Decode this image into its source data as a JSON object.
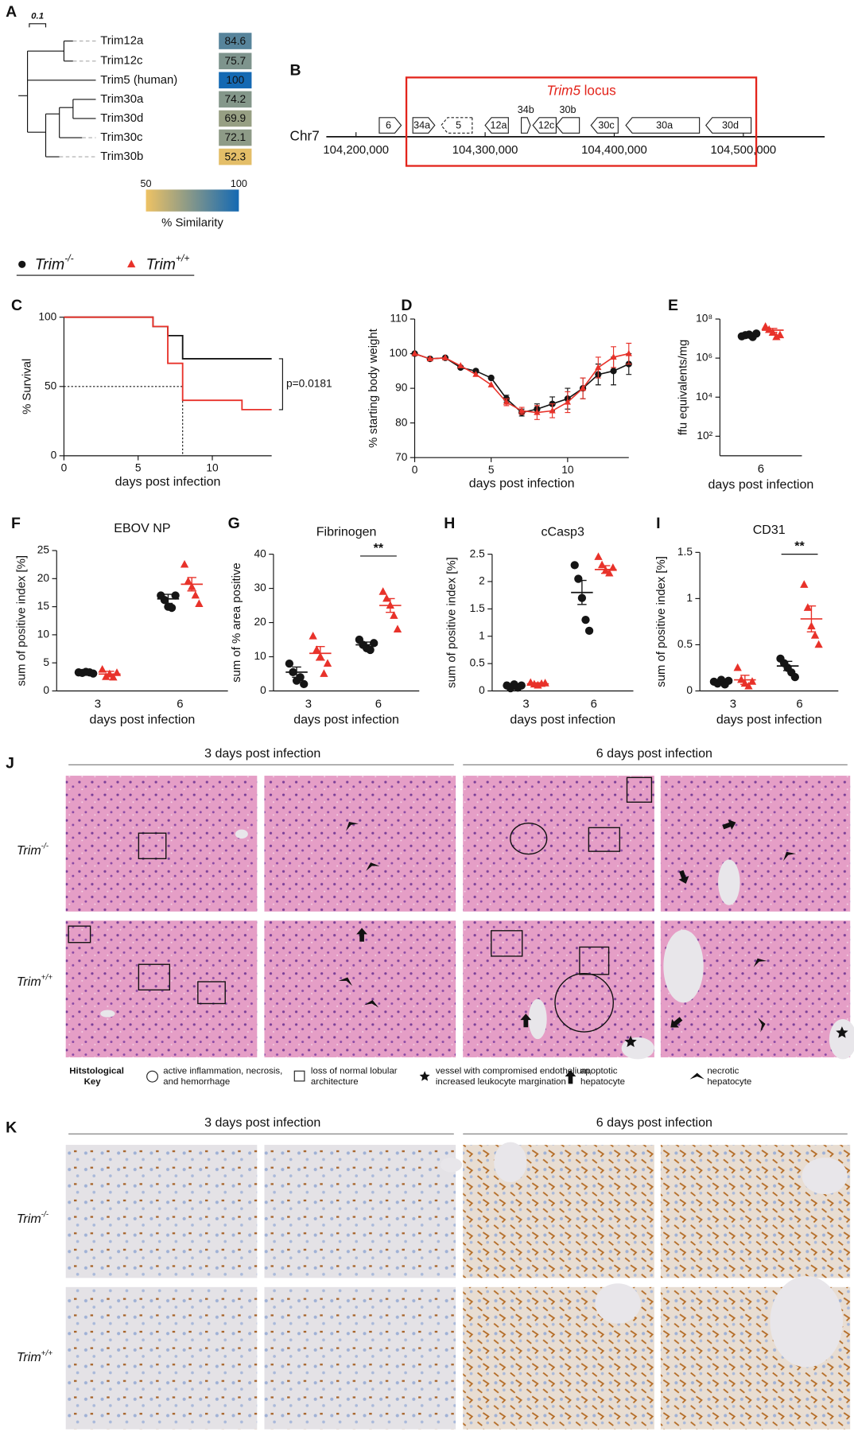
{
  "panel_labels": [
    "A",
    "B",
    "C",
    "D",
    "E",
    "F",
    "G",
    "H",
    "I",
    "J",
    "K"
  ],
  "genotypes": [
    {
      "base": "Trim",
      "sup": "-/-",
      "color": "#151515",
      "marker": "circle"
    },
    {
      "base": "Trim",
      "sup": "+/+",
      "color": "#e8322a",
      "marker": "triangle"
    }
  ],
  "tree": {
    "scale_label": "0.1",
    "leaves": [
      {
        "name": "Trim12a",
        "similarity": 84.6
      },
      {
        "name": "Trim12c",
        "similarity": 75.7
      },
      {
        "name": "Trim5 (human)",
        "similarity": 100
      },
      {
        "name": "Trim30a",
        "similarity": 74.2
      },
      {
        "name": "Trim30d",
        "similarity": 69.9
      },
      {
        "name": "Trim30c",
        "similarity": 72.1
      },
      {
        "name": "Trim30b",
        "similarity": 52.3
      }
    ],
    "colorbar": {
      "min": 50,
      "max": 100,
      "label": "% Similarity",
      "low_color": "#eec264",
      "high_color": "#1469b3"
    }
  },
  "locus": {
    "chromosome": "Chr7",
    "xlim": [
      104177000,
      104563000
    ],
    "xticks": [
      {
        "value": 104200000,
        "label": "104,200,000"
      },
      {
        "value": 104300000,
        "label": "104,300,000"
      },
      {
        "value": 104400000,
        "label": "104,400,000"
      },
      {
        "value": 104500000,
        "label": "104,500,000"
      }
    ],
    "region": {
      "italic": "Trim5",
      "text": "locus",
      "start": 104239000,
      "end": 104510000,
      "color": "#e3241b"
    },
    "genes": [
      {
        "name": "6",
        "start": 104218000,
        "end": 104235000,
        "direction": "right"
      },
      {
        "name": "34a",
        "start": 104244000,
        "end": 104261000,
        "direction": "right"
      },
      {
        "name": "5",
        "start": 104266000,
        "end": 104290000,
        "direction": "left",
        "dashed": true
      },
      {
        "name": "12a",
        "start": 104300000,
        "end": 104318000,
        "direction": "left"
      },
      {
        "name": "34b",
        "start": 104328000,
        "end": 104335000,
        "direction": "right",
        "label_above": true
      },
      {
        "name": "12c",
        "start": 104337000,
        "end": 104355000,
        "direction": "left"
      },
      {
        "name": "30b",
        "start": 104355000,
        "end": 104373000,
        "direction": "left",
        "label_above": true
      },
      {
        "name": "30c",
        "start": 104382000,
        "end": 104403000,
        "direction": "left"
      },
      {
        "name": "30a",
        "start": 104409000,
        "end": 104466000,
        "direction": "left"
      },
      {
        "name": "30d",
        "start": 104471000,
        "end": 104506000,
        "direction": "left"
      }
    ]
  },
  "chart_data": [
    {
      "type": "step",
      "ylabel": "% Survival",
      "xlabel": "days post infection",
      "xlim": [
        0,
        14
      ],
      "xticks": [
        0,
        5,
        10
      ],
      "ylim": [
        0,
        100
      ],
      "yticks": [
        0,
        50,
        100
      ],
      "series": [
        {
          "color": "#151515",
          "x": [
            0,
            6,
            7,
            8,
            14
          ],
          "values": [
            100,
            93.3,
            86.7,
            70,
            70
          ]
        },
        {
          "color": "#e8322a",
          "x": [
            0,
            6,
            7,
            8,
            12,
            14
          ],
          "values": [
            100,
            93.3,
            66.7,
            40,
            33.3,
            33.3
          ]
        }
      ],
      "median_line": {
        "x": 8,
        "y": 50
      },
      "annotation": "p=0.0181"
    },
    {
      "type": "line",
      "ylabel": "% starting  body weight",
      "xlabel": "days post infection",
      "xlim": [
        0,
        14
      ],
      "xticks": [
        0,
        5,
        10
      ],
      "ylim": [
        70,
        110
      ],
      "yticks": [
        70,
        80,
        90,
        100,
        110
      ],
      "x": [
        0,
        1,
        2,
        3,
        4,
        5,
        6,
        7,
        8,
        9,
        10,
        11,
        12,
        13,
        14
      ],
      "series": [
        {
          "color": "#151515",
          "marker": "circle",
          "values": [
            100,
            98.5,
            98.8,
            96,
            95,
            93,
            87,
            83,
            84,
            85.5,
            87,
            90,
            94,
            95,
            97
          ],
          "errors": [
            0,
            0,
            0,
            0,
            0,
            0,
            1,
            1,
            1.5,
            2,
            3,
            3,
            3,
            4,
            3
          ]
        },
        {
          "color": "#e8322a",
          "marker": "triangle",
          "values": [
            100,
            98.5,
            98.8,
            96.5,
            94,
            91,
            86,
            83.5,
            83,
            83.5,
            86,
            90,
            96,
            99,
            100
          ],
          "errors": [
            0,
            0,
            0,
            0,
            0,
            0,
            1,
            1,
            2,
            2,
            3,
            3,
            3,
            3,
            3
          ]
        }
      ]
    },
    {
      "type": "dot",
      "ylabel": "ffu equivalents/mg",
      "xlabel": "days post infection",
      "categories": [
        "6"
      ],
      "log_y": true,
      "ylim": [
        10,
        100000000
      ],
      "yticks": [
        {
          "value": 100,
          "label": "10²"
        },
        {
          "value": 10000,
          "label": "10⁴"
        },
        {
          "value": 1000000,
          "label": "10⁶"
        },
        {
          "value": 100000000,
          "label": "10⁸"
        }
      ],
      "series": [
        {
          "color": "#151515",
          "marker": "circle",
          "values": [
            [
              13000000,
              15000000,
              16000000,
              12000000,
              18000000
            ]
          ],
          "means": [
            15000000
          ],
          "errors": [
            1200000
          ]
        },
        {
          "color": "#e8322a",
          "marker": "triangle",
          "values": [
            [
              40000000,
              28000000,
              20000000,
              12000000,
              15000000
            ]
          ],
          "means": [
            27000000
          ],
          "errors": [
            6000000
          ]
        }
      ]
    },
    {
      "type": "dot",
      "title": "EBOV NP",
      "ylabel": "sum of positive index [%]",
      "xlabel": "days post infection",
      "categories": [
        "3",
        "6"
      ],
      "ylim": [
        0,
        25
      ],
      "yticks": [
        0,
        5,
        10,
        15,
        20,
        25
      ],
      "series": [
        {
          "color": "#151515",
          "marker": "circle",
          "values": [
            [
              3.3,
              3.2,
              3.4,
              3.3,
              3.1
            ],
            [
              17,
              16.2,
              15,
              14.8,
              17
            ]
          ],
          "means": [
            3.3,
            16.4
          ],
          "errors": [
            0.1,
            0.8
          ]
        },
        {
          "color": "#e8322a",
          "marker": "triangle",
          "values": [
            [
              3.8,
              2.5,
              3.0,
              2.4,
              3.2
            ],
            [
              22.5,
              19.5,
              18.5,
              17,
              15.5
            ]
          ],
          "means": [
            3.0,
            19
          ],
          "errors": [
            0.5,
            1.2
          ]
        }
      ]
    },
    {
      "type": "dot",
      "title": "Fibrinogen",
      "ylabel": "sum of % area positive",
      "xlabel": "days post infection",
      "categories": [
        "3",
        "6"
      ],
      "ylim": [
        0,
        40
      ],
      "yticks": [
        0,
        10,
        20,
        30,
        40
      ],
      "annotation": "**",
      "series": [
        {
          "color": "#151515",
          "marker": "circle",
          "values": [
            [
              8,
              5.5,
              3,
              4,
              2
            ],
            [
              15,
              13.5,
              12.5,
              12,
              14
            ]
          ],
          "means": [
            5.5,
            13.5
          ],
          "errors": [
            1.5,
            0.8
          ]
        },
        {
          "color": "#e8322a",
          "marker": "triangle",
          "values": [
            [
              16,
              12,
              10,
              5,
              8
            ],
            [
              29,
              27,
              25,
              22,
              18
            ]
          ],
          "means": [
            11,
            25
          ],
          "errors": [
            2,
            2
          ]
        }
      ]
    },
    {
      "type": "dot",
      "title": "cCasp3",
      "ylabel": "sum of positive index [%]",
      "xlabel": "days post infection",
      "categories": [
        "3",
        "6"
      ],
      "ylim": [
        0,
        2.5
      ],
      "yticks": [
        0,
        0.5,
        1,
        1.5,
        2,
        2.5
      ],
      "series": [
        {
          "color": "#151515",
          "marker": "circle",
          "values": [
            [
              0.1,
              0.05,
              0.12,
              0.06,
              0.1
            ],
            [
              2.3,
              2.05,
              1.7,
              1.3,
              1.1
            ]
          ],
          "means": [
            0.08,
            1.8
          ],
          "errors": [
            0.03,
            0.22
          ]
        },
        {
          "color": "#e8322a",
          "marker": "triangle",
          "values": [
            [
              0.15,
              0.12,
              0.1,
              0.13,
              0.14
            ],
            [
              2.45,
              2.3,
              2.2,
              2.15,
              2.25
            ]
          ],
          "means": [
            0.13,
            2.22
          ],
          "errors": [
            0.02,
            0.07
          ]
        }
      ]
    },
    {
      "type": "dot",
      "title": "CD31",
      "ylabel": "sum of positive index [%]",
      "xlabel": "days post infection",
      "categories": [
        "3",
        "6"
      ],
      "ylim": [
        0,
        1.5
      ],
      "yticks": [
        0,
        0.5,
        1,
        1.5
      ],
      "annotation": "**",
      "series": [
        {
          "color": "#151515",
          "marker": "circle",
          "values": [
            [
              0.1,
              0.08,
              0.12,
              0.07,
              0.11
            ],
            [
              0.35,
              0.3,
              0.25,
              0.2,
              0.15
            ]
          ],
          "means": [
            0.09,
            0.27
          ],
          "errors": [
            0.01,
            0.05
          ]
        },
        {
          "color": "#e8322a",
          "marker": "triangle",
          "values": [
            [
              0.25,
              0.12,
              0.08,
              0.05,
              0.1
            ],
            [
              1.15,
              0.9,
              0.7,
              0.6,
              0.5
            ]
          ],
          "means": [
            0.12,
            0.78
          ],
          "errors": [
            0.05,
            0.14
          ]
        }
      ]
    }
  ],
  "histology": {
    "J": {
      "columns": [
        "3 days post infection",
        "6 days post infection"
      ]
    },
    "K": {
      "columns": [
        "3 days post infection",
        "6 days post infection"
      ]
    },
    "key": {
      "title": [
        "Hitstological",
        "Key"
      ],
      "items": [
        {
          "lines": [
            "active inflammation, necrosis,",
            "and hemorrhage"
          ]
        },
        {
          "lines": [
            "loss of normal lobular",
            "architecture"
          ]
        },
        {
          "lines": [
            "vessel with compromised endothelium,",
            "increased leukocyte margination"
          ]
        },
        {
          "lines": [
            "apoptotic",
            "hepatocyte"
          ]
        },
        {
          "lines": [
            "necrotic",
            "hepatocyte"
          ]
        }
      ]
    }
  }
}
